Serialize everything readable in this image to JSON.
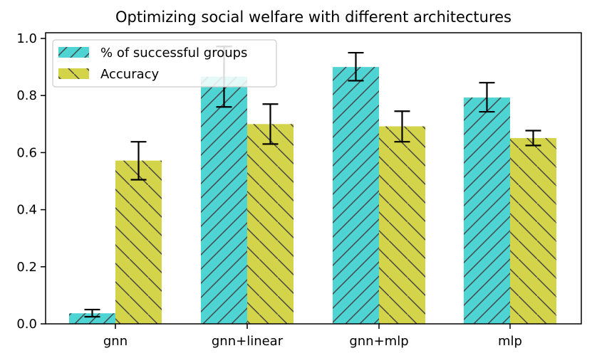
{
  "chart_data": {
    "type": "bar",
    "title": "Optimizing social welfare with different architectures",
    "xlabel": "",
    "ylabel": "",
    "categories": [
      "gnn",
      "gnn+linear",
      "gnn+mlp",
      "mlp"
    ],
    "ylim": [
      0,
      1.02
    ],
    "yticks": [
      0.0,
      0.2,
      0.4,
      0.6,
      0.8,
      1.0
    ],
    "ytick_labels": [
      "0.0",
      "0.2",
      "0.4",
      "0.6",
      "0.8",
      "1.0"
    ],
    "grid": false,
    "legend_position": "top-left",
    "series": [
      {
        "name": "% of successful groups",
        "color": "#4fd4d4",
        "hatch": "/",
        "values": [
          0.037,
          0.866,
          0.9,
          0.793
        ],
        "err_low": [
          0.025,
          0.76,
          0.852,
          0.743
        ],
        "err_high": [
          0.05,
          0.972,
          0.95,
          0.845
        ]
      },
      {
        "name": "Accuracy",
        "color": "#d4d44a",
        "hatch": "\\",
        "values": [
          0.572,
          0.7,
          0.692,
          0.651
        ],
        "err_low": [
          0.505,
          0.63,
          0.638,
          0.625
        ],
        "err_high": [
          0.638,
          0.77,
          0.745,
          0.677
        ]
      }
    ]
  }
}
